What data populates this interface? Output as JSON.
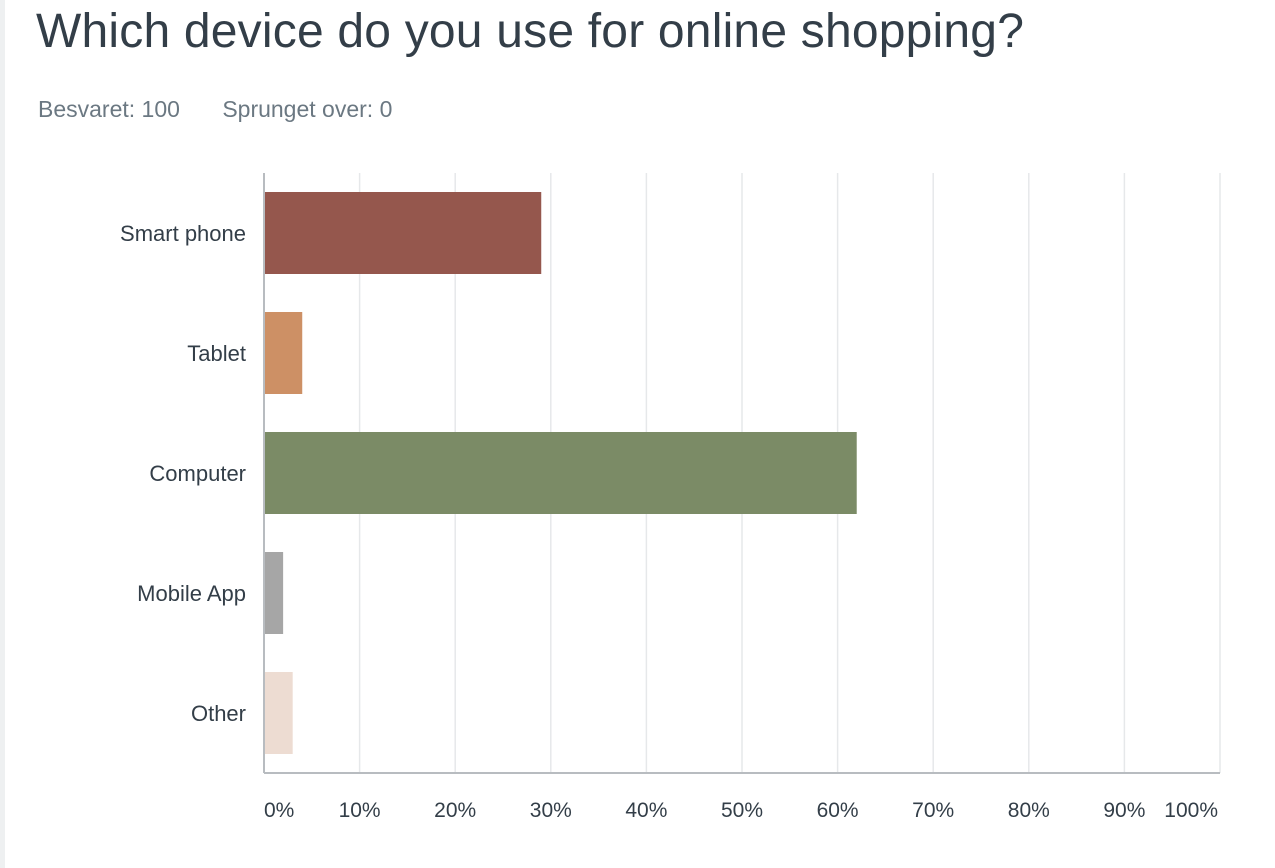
{
  "title": "Which device do you use for online shopping?",
  "stats": {
    "answered_label": "Besvaret:",
    "answered_value": "100",
    "skipped_label": "Sprunget over:",
    "skipped_value": "0"
  },
  "chart_data": {
    "type": "bar",
    "orientation": "horizontal",
    "categories": [
      "Smart phone",
      "Tablet",
      "Computer",
      "Mobile App",
      "Other"
    ],
    "values": [
      29,
      4,
      62,
      2,
      3
    ],
    "colors": [
      "#95574d",
      "#cd9065",
      "#7b8b66",
      "#a6a6a6",
      "#eddcd2"
    ],
    "xlim": [
      0,
      100
    ],
    "x_ticks": [
      0,
      10,
      20,
      30,
      40,
      50,
      60,
      70,
      80,
      90,
      100
    ],
    "x_tick_labels": [
      "0%",
      "10%",
      "20%",
      "30%",
      "40%",
      "50%",
      "60%",
      "70%",
      "80%",
      "90%",
      "100%"
    ],
    "grid": true
  }
}
